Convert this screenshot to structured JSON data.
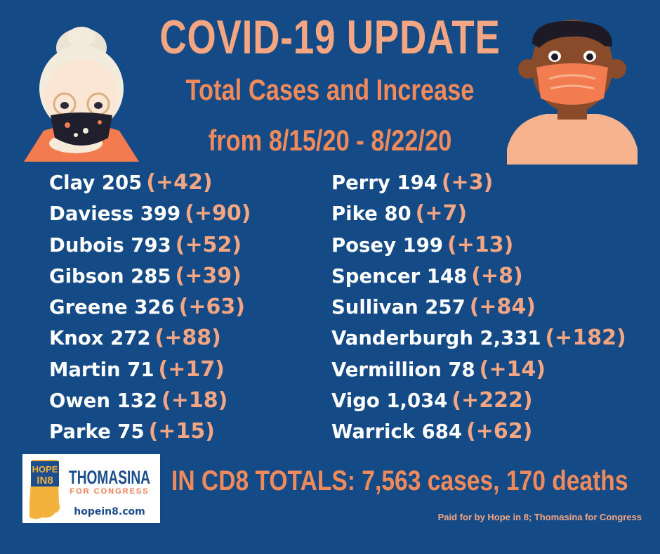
{
  "header": {
    "title": "COVID-19 UPDATE",
    "subtitle_line1": "Total Cases and Increase",
    "subtitle_line2": "from 8/15/20 - 8/22/20"
  },
  "counties_left": [
    {
      "label": "Clay 205",
      "increase": "(+42)"
    },
    {
      "label": "Daviess 399",
      "increase": "(+90)"
    },
    {
      "label": "Dubois 793",
      "increase": "(+52)"
    },
    {
      "label": "Gibson 285",
      "increase": "(+39)"
    },
    {
      "label": "Greene 326",
      "increase": "(+63)"
    },
    {
      "label": "Knox 272",
      "increase": "(+88)"
    },
    {
      "label": "Martin 71",
      "increase": "(+17)"
    },
    {
      "label": "Owen 132",
      "increase": "(+18)"
    },
    {
      "label": "Parke 75",
      "increase": "(+15)"
    }
  ],
  "counties_right": [
    {
      "label": "Perry 194",
      "increase": "(+3)"
    },
    {
      "label": "Pike 80",
      "increase": "(+7)"
    },
    {
      "label": "Posey 199",
      "increase": "(+13)"
    },
    {
      "label": "Spencer 148",
      "increase": "(+8)"
    },
    {
      "label": "Sullivan 257",
      "increase": "(+84)"
    },
    {
      "label": "Vanderburgh 2,331",
      "increase": "(+182)"
    },
    {
      "label": "Vermillion 78",
      "increase": "(+14)"
    },
    {
      "label": "Vigo 1,034",
      "increase": "(+222)"
    },
    {
      "label": "Warrick 684",
      "increase": "(+62)"
    }
  ],
  "totals": "IN CD8 TOTALS: 7,563 cases,  170 deaths",
  "footer": {
    "paid_for": "Paid for by Hope in 8; Thomasina for Congress"
  },
  "logo": {
    "hope_line1": "HOPE",
    "hope_line2": "IN8",
    "name": "THOMASINA",
    "tagline": "FOR CONGRESS",
    "url": "hopein8.com"
  },
  "colors": {
    "background": "#144a86",
    "title": "#f4a683",
    "subtitle": "#f08a5a",
    "increase": "#f4a683",
    "text": "#ffffff"
  },
  "icons": [
    "elderly-woman-mask-illustration",
    "young-man-mask-illustration",
    "indiana-state-logo-icon"
  ]
}
